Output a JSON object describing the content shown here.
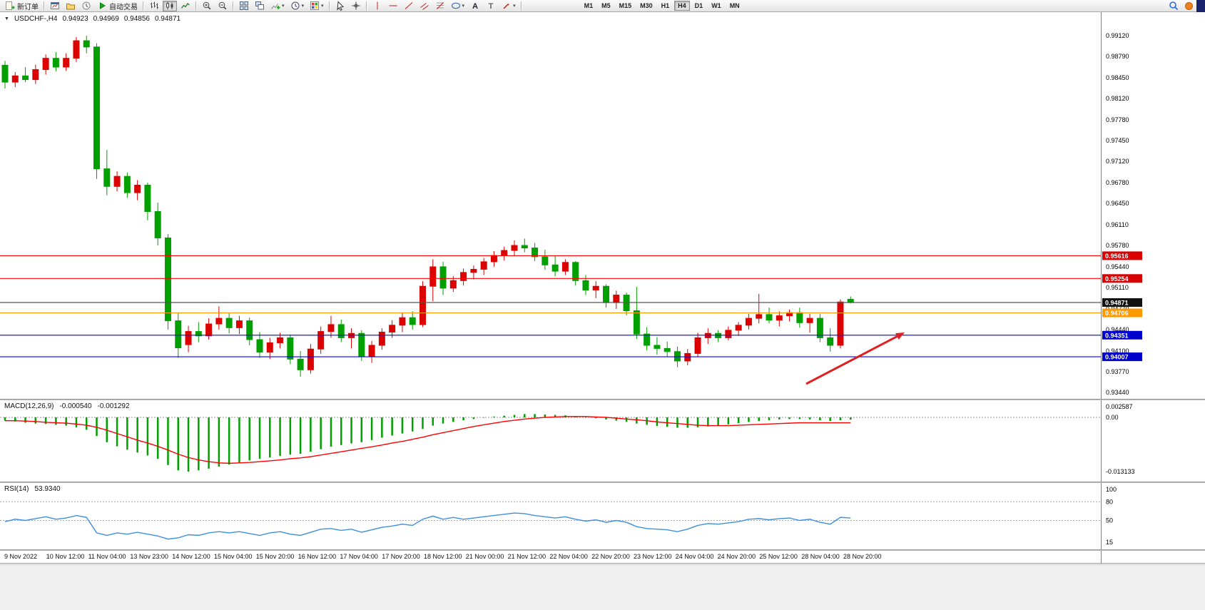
{
  "toolbar": {
    "items": [
      {
        "name": "new-order",
        "icon": "new-order",
        "label": "新订单"
      },
      {
        "type": "sep"
      },
      {
        "name": "chart-window",
        "icon": "chart-window"
      },
      {
        "name": "profiles",
        "icon": "profiles"
      },
      {
        "name": "data-window",
        "icon": "alerts"
      },
      {
        "name": "autotrading",
        "icon": "play",
        "label": "自动交易"
      },
      {
        "type": "sep"
      },
      {
        "name": "bar-chart-mode",
        "icon": "bars"
      },
      {
        "name": "candle-chart-mode",
        "icon": "candles",
        "pressed": true
      },
      {
        "name": "line-chart-mode",
        "icon": "line-chart"
      },
      {
        "type": "sep"
      },
      {
        "name": "zoom-in",
        "icon": "zoom-in"
      },
      {
        "name": "zoom-out",
        "icon": "zoom-out"
      },
      {
        "type": "sep"
      },
      {
        "name": "tile-windows",
        "icon": "tile"
      },
      {
        "name": "cascade-windows",
        "icon": "cascade"
      },
      {
        "name": "indicators",
        "icon": "ind-plus",
        "dropdown": true
      },
      {
        "name": "periods",
        "icon": "clock",
        "dropdown": true
      },
      {
        "name": "templates",
        "icon": "palette",
        "dropdown": true
      },
      {
        "type": "sep"
      },
      {
        "name": "cursor-tool",
        "icon": "cursor"
      },
      {
        "name": "crosshair-tool",
        "icon": "crosshair"
      },
      {
        "type": "sep"
      },
      {
        "name": "vertical-line-tool",
        "icon": "vline"
      },
      {
        "name": "horizontal-line-tool",
        "icon": "hline"
      },
      {
        "name": "trendline-tool",
        "icon": "trendline"
      },
      {
        "name": "channel-tool",
        "icon": "channel"
      },
      {
        "name": "fibonacci-tool",
        "icon": "fibo"
      },
      {
        "name": "shapes-tool",
        "icon": "shapes",
        "dropdown": true
      },
      {
        "name": "text-tool",
        "icon": "textA"
      },
      {
        "name": "label-tool",
        "icon": "textT"
      },
      {
        "name": "arrows-tool",
        "icon": "arrow-style",
        "dropdown": true
      },
      {
        "type": "sep"
      }
    ],
    "timeframes": [
      "M1",
      "M5",
      "M15",
      "M30",
      "H1",
      "H4",
      "D1",
      "W1",
      "MN"
    ],
    "active_timeframe": "H4"
  },
  "chart": {
    "header": {
      "symbol": "USDCHF-,H4",
      "open": "0.94923",
      "high": "0.94969",
      "low": "0.94856",
      "close": "0.94871"
    }
  },
  "chart_data": [
    {
      "type": "candlestick",
      "title": "USDCHF-,H4",
      "up_color": "#dd0000",
      "down_color": "#00a000",
      "ylim": [
        0.9344,
        0.9912
      ],
      "y_ticks": [
        "0.99120",
        "0.98790",
        "0.98450",
        "0.98120",
        "0.97780",
        "0.97450",
        "0.97120",
        "0.96780",
        "0.96450",
        "0.96110",
        "0.95780",
        "0.95440",
        "0.95110",
        "0.94770",
        "0.94440",
        "0.94100",
        "0.93770",
        "0.93440"
      ],
      "x_labels": [
        "9 Nov 2022",
        "10 Nov 12:00",
        "11 Nov 04:00",
        "13 Nov 23:00",
        "14 Nov 12:00",
        "15 Nov 04:00",
        "15 Nov 20:00",
        "16 Nov 12:00",
        "17 Nov 04:00",
        "17 Nov 20:00",
        "18 Nov 12:00",
        "21 Nov 00:00",
        "21 Nov 12:00",
        "22 Nov 04:00",
        "22 Nov 20:00",
        "23 Nov 12:00",
        "24 Nov 04:00",
        "24 Nov 20:00",
        "25 Nov 12:00",
        "28 Nov 04:00",
        "28 Nov 20:00"
      ],
      "ohlc": [
        [
          0.9865,
          0.9872,
          0.9828,
          0.9838
        ],
        [
          0.9838,
          0.9854,
          0.983,
          0.9848
        ],
        [
          0.9848,
          0.9862,
          0.9838,
          0.9842
        ],
        [
          0.9842,
          0.9866,
          0.9835,
          0.9858
        ],
        [
          0.9858,
          0.9882,
          0.985,
          0.9876
        ],
        [
          0.9876,
          0.9886,
          0.9855,
          0.9862
        ],
        [
          0.9862,
          0.9884,
          0.9856,
          0.9876
        ],
        [
          0.9876,
          0.991,
          0.987,
          0.9904
        ],
        [
          0.9904,
          0.9912,
          0.9884,
          0.9894
        ],
        [
          0.9894,
          0.99,
          0.9684,
          0.97
        ],
        [
          0.97,
          0.973,
          0.9658,
          0.9672
        ],
        [
          0.9672,
          0.9696,
          0.9664,
          0.9688
        ],
        [
          0.9688,
          0.9694,
          0.9654,
          0.9662
        ],
        [
          0.9662,
          0.9682,
          0.965,
          0.9674
        ],
        [
          0.9674,
          0.9678,
          0.9618,
          0.9632
        ],
        [
          0.9632,
          0.9646,
          0.9578,
          0.959
        ],
        [
          0.959,
          0.9596,
          0.9444,
          0.9458
        ],
        [
          0.9458,
          0.947,
          0.9399,
          0.9415
        ],
        [
          0.942,
          0.945,
          0.9408,
          0.9441
        ],
        [
          0.9441,
          0.9456,
          0.9424,
          0.9434
        ],
        [
          0.9434,
          0.9462,
          0.9428,
          0.9453
        ],
        [
          0.9453,
          0.9481,
          0.9444,
          0.9462
        ],
        [
          0.9462,
          0.947,
          0.9438,
          0.9447
        ],
        [
          0.9447,
          0.9466,
          0.9437,
          0.9458
        ],
        [
          0.9458,
          0.9463,
          0.9419,
          0.9428
        ],
        [
          0.9428,
          0.944,
          0.9399,
          0.9408
        ],
        [
          0.9408,
          0.9431,
          0.9397,
          0.9423
        ],
        [
          0.9423,
          0.9439,
          0.9414,
          0.9431
        ],
        [
          0.9431,
          0.9436,
          0.9389,
          0.9397
        ],
        [
          0.9397,
          0.941,
          0.9369,
          0.938
        ],
        [
          0.938,
          0.9421,
          0.9374,
          0.9413
        ],
        [
          0.9413,
          0.9449,
          0.9405,
          0.9441
        ],
        [
          0.9441,
          0.9466,
          0.9431,
          0.9452
        ],
        [
          0.9452,
          0.946,
          0.9424,
          0.9431
        ],
        [
          0.9431,
          0.9446,
          0.9414,
          0.9438
        ],
        [
          0.9438,
          0.9443,
          0.9394,
          0.9401
        ],
        [
          0.9401,
          0.9426,
          0.9391,
          0.9419
        ],
        [
          0.9419,
          0.9446,
          0.9412,
          0.944
        ],
        [
          0.944,
          0.9459,
          0.9431,
          0.9451
        ],
        [
          0.9451,
          0.9471,
          0.944,
          0.9463
        ],
        [
          0.9463,
          0.9473,
          0.9444,
          0.9452
        ],
        [
          0.9452,
          0.9521,
          0.9448,
          0.9513
        ],
        [
          0.9513,
          0.9556,
          0.9489,
          0.9544
        ],
        [
          0.9544,
          0.9552,
          0.9499,
          0.951
        ],
        [
          0.951,
          0.9529,
          0.9504,
          0.9522
        ],
        [
          0.9522,
          0.9541,
          0.9514,
          0.9535
        ],
        [
          0.9535,
          0.9546,
          0.9524,
          0.954
        ],
        [
          0.954,
          0.9558,
          0.9531,
          0.9552
        ],
        [
          0.9552,
          0.9569,
          0.9544,
          0.9562
        ],
        [
          0.9562,
          0.9576,
          0.9554,
          0.957
        ],
        [
          0.957,
          0.9586,
          0.9561,
          0.9578
        ],
        [
          0.9578,
          0.9589,
          0.9567,
          0.9574
        ],
        [
          0.9574,
          0.9582,
          0.9553,
          0.956
        ],
        [
          0.956,
          0.9571,
          0.9539,
          0.9547
        ],
        [
          0.9547,
          0.9562,
          0.9529,
          0.9537
        ],
        [
          0.9537,
          0.9556,
          0.9531,
          0.9551
        ],
        [
          0.9551,
          0.9553,
          0.9514,
          0.9522
        ],
        [
          0.9522,
          0.9531,
          0.9499,
          0.9507
        ],
        [
          0.9507,
          0.9521,
          0.9494,
          0.9513
        ],
        [
          0.9513,
          0.9516,
          0.9479,
          0.9487
        ],
        [
          0.9487,
          0.9506,
          0.9477,
          0.9499
        ],
        [
          0.9499,
          0.9503,
          0.9467,
          0.9474
        ],
        [
          0.9474,
          0.9512,
          0.9429,
          0.9437
        ],
        [
          0.9437,
          0.9448,
          0.9411,
          0.9419
        ],
        [
          0.9419,
          0.9432,
          0.9404,
          0.9414
        ],
        [
          0.9414,
          0.9425,
          0.9401,
          0.9409
        ],
        [
          0.9409,
          0.9417,
          0.9384,
          0.9394
        ],
        [
          0.9394,
          0.9413,
          0.9387,
          0.9406
        ],
        [
          0.9406,
          0.9439,
          0.94,
          0.9431
        ],
        [
          0.9431,
          0.9446,
          0.9421,
          0.9438
        ],
        [
          0.9438,
          0.9443,
          0.9424,
          0.9431
        ],
        [
          0.9431,
          0.9449,
          0.9427,
          0.9443
        ],
        [
          0.9443,
          0.9456,
          0.9434,
          0.9451
        ],
        [
          0.9451,
          0.9469,
          0.9444,
          0.9462
        ],
        [
          0.9462,
          0.9501,
          0.9454,
          0.9468
        ],
        [
          0.9468,
          0.9479,
          0.9454,
          0.9459
        ],
        [
          0.9459,
          0.9473,
          0.9449,
          0.9466
        ],
        [
          0.9466,
          0.9476,
          0.9457,
          0.9471
        ],
        [
          0.9471,
          0.9479,
          0.9447,
          0.9455
        ],
        [
          0.9455,
          0.9469,
          0.9439,
          0.9462
        ],
        [
          0.9462,
          0.9469,
          0.9424,
          0.9431
        ],
        [
          0.9431,
          0.9446,
          0.9409,
          0.9419
        ],
        [
          0.9419,
          0.9492,
          0.9414,
          0.9488
        ],
        [
          0.94923,
          0.94969,
          0.94856,
          0.94871
        ]
      ],
      "hlines": [
        {
          "price": 0.95616,
          "label": "0.95616",
          "line_color": "#ff0000",
          "tag_color": "#d80000"
        },
        {
          "price": 0.95254,
          "label": "0.95254",
          "line_color": "#ff0000",
          "tag_color": "#d80000"
        },
        {
          "price": 0.94871,
          "label": "0.94871",
          "line_color": "#555555",
          "tag_color": "#111111"
        },
        {
          "price": 0.94706,
          "label": "0.94706",
          "line_color": "#ff9900",
          "tag_color": "#ff9900"
        },
        {
          "price": 0.94351,
          "label": "0.94351",
          "line_color": "#0000ee",
          "tag_color": "#0000cc"
        },
        {
          "price": 0.94007,
          "label": "0.94007",
          "line_color": "#0000ee",
          "tag_color": "#0000cc"
        }
      ],
      "annotation_arrow": {
        "from": [
          1130,
          521
        ],
        "to": [
          1268,
          449
        ],
        "color": "#e02020"
      }
    },
    {
      "type": "bar",
      "name": "MACD(12,26,9)",
      "value_main": "-0.000540",
      "value_signal": "-0.001292",
      "hist_color": "#00a000",
      "signal_color": "#ff0000",
      "y_ticks": [
        "0.002587",
        "0.00",
        "-0.013133"
      ],
      "histogram": [
        -0.0008,
        -0.001,
        -0.0013,
        -0.0015,
        -0.0016,
        -0.0018,
        -0.002,
        -0.0024,
        -0.003,
        -0.0045,
        -0.006,
        -0.007,
        -0.0078,
        -0.0085,
        -0.0092,
        -0.01,
        -0.0115,
        -0.0128,
        -0.0131,
        -0.0128,
        -0.0124,
        -0.0119,
        -0.0114,
        -0.0109,
        -0.0104,
        -0.01,
        -0.0097,
        -0.0093,
        -0.009,
        -0.0088,
        -0.0083,
        -0.0077,
        -0.0071,
        -0.0067,
        -0.0063,
        -0.006,
        -0.0055,
        -0.0049,
        -0.0044,
        -0.0039,
        -0.0034,
        -0.0028,
        -0.002,
        -0.0015,
        -0.0011,
        -0.0007,
        -0.0004,
        -0.0001,
        0.0002,
        0.0004,
        0.0006,
        0.0008,
        0.0008,
        0.0007,
        0.0006,
        0.0005,
        0.0003,
        0.0001,
        -0.0002,
        -0.0005,
        -0.0008,
        -0.0011,
        -0.0015,
        -0.0018,
        -0.0021,
        -0.0023,
        -0.0025,
        -0.0025,
        -0.0024,
        -0.0022,
        -0.002,
        -0.0017,
        -0.0014,
        -0.0011,
        -0.0009,
        -0.0007,
        -0.0005,
        -0.0004,
        -0.0004,
        -0.0005,
        -0.0007,
        -0.0009,
        -0.0007,
        -0.00054
      ],
      "signal": [
        -0.0008,
        -0.0008,
        -0.0009,
        -0.001,
        -0.0012,
        -0.0013,
        -0.0014,
        -0.0016,
        -0.0019,
        -0.0024,
        -0.0031,
        -0.0039,
        -0.0047,
        -0.0055,
        -0.0062,
        -0.007,
        -0.0079,
        -0.0089,
        -0.0097,
        -0.0103,
        -0.0107,
        -0.011,
        -0.0111,
        -0.011,
        -0.0109,
        -0.0107,
        -0.0105,
        -0.0103,
        -0.01,
        -0.0098,
        -0.0095,
        -0.0091,
        -0.0087,
        -0.0083,
        -0.0079,
        -0.0075,
        -0.0071,
        -0.0067,
        -0.0062,
        -0.0058,
        -0.0053,
        -0.0048,
        -0.0042,
        -0.0037,
        -0.0032,
        -0.0027,
        -0.0022,
        -0.0018,
        -0.0014,
        -0.001,
        -0.0007,
        -0.0004,
        -0.0002,
        0.0,
        0.0001,
        0.0002,
        0.0002,
        0.0002,
        0.0001,
        0.0,
        -0.0002,
        -0.0004,
        -0.0006,
        -0.0008,
        -0.0011,
        -0.0013,
        -0.0015,
        -0.0017,
        -0.0019,
        -0.002,
        -0.002,
        -0.002,
        -0.0019,
        -0.0018,
        -0.0017,
        -0.0016,
        -0.0015,
        -0.0014,
        -0.0013,
        -0.0013,
        -0.0013,
        -0.0013,
        -0.0013,
        -0.0013
      ]
    },
    {
      "type": "line",
      "name": "RSI(14)",
      "value": "53.9340",
      "color": "#3d8fe0",
      "levels": [
        80,
        50
      ],
      "y_ticks": [
        "100",
        "80",
        "50",
        "15"
      ],
      "values": [
        48,
        52,
        50,
        53,
        56,
        52,
        54,
        58,
        55,
        30,
        26,
        30,
        28,
        31,
        28,
        25,
        20,
        22,
        27,
        26,
        30,
        32,
        30,
        32,
        29,
        26,
        30,
        32,
        28,
        26,
        31,
        36,
        37,
        34,
        36,
        31,
        35,
        39,
        41,
        44,
        42,
        52,
        57,
        52,
        55,
        52,
        54,
        56,
        58,
        60,
        62,
        61,
        58,
        56,
        54,
        56,
        52,
        49,
        51,
        47,
        50,
        47,
        40,
        37,
        36,
        35,
        32,
        36,
        42,
        45,
        44,
        46,
        48,
        52,
        53,
        51,
        53,
        54,
        50,
        52,
        47,
        44,
        55,
        54
      ]
    }
  ]
}
